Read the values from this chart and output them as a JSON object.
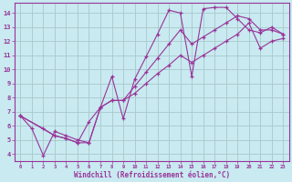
{
  "background_color": "#c8eaf0",
  "grid_color": "#a8c8cc",
  "line_color": "#993399",
  "marker": "+",
  "xlim": [
    -0.5,
    23.5
  ],
  "ylim": [
    3.5,
    14.7
  ],
  "xticks": [
    0,
    1,
    2,
    3,
    4,
    5,
    6,
    7,
    8,
    9,
    10,
    11,
    12,
    13,
    14,
    15,
    16,
    17,
    18,
    19,
    20,
    21,
    22,
    23
  ],
  "yticks": [
    4,
    5,
    6,
    7,
    8,
    9,
    10,
    11,
    12,
    13,
    14
  ],
  "xlabel": "Windchill (Refroidissement éolien,°C)",
  "curves": [
    {
      "x": [
        0,
        1,
        2,
        3,
        4,
        5,
        6,
        7,
        8,
        9,
        10,
        11,
        12,
        13,
        14,
        15,
        16,
        17,
        18,
        19,
        20,
        21,
        22,
        23
      ],
      "y": [
        6.7,
        5.8,
        3.9,
        5.6,
        5.3,
        5.0,
        4.8,
        7.3,
        9.5,
        6.5,
        9.3,
        10.9,
        12.5,
        14.2,
        14.0,
        9.5,
        14.3,
        14.4,
        14.4,
        13.6,
        12.8,
        12.6,
        13.0,
        12.5
      ]
    },
    {
      "x": [
        0,
        2,
        3,
        4,
        5,
        6,
        7,
        8,
        9,
        10,
        11,
        12,
        13,
        14,
        15,
        16,
        17,
        18,
        19,
        20,
        21,
        22,
        23
      ],
      "y": [
        6.7,
        5.8,
        5.3,
        5.1,
        4.8,
        6.3,
        7.3,
        7.8,
        7.8,
        8.8,
        9.8,
        10.8,
        11.8,
        12.8,
        11.8,
        12.3,
        12.8,
        13.3,
        13.8,
        13.6,
        12.8,
        12.8,
        12.5
      ]
    },
    {
      "x": [
        0,
        3,
        4,
        5,
        6,
        7,
        8,
        9,
        10,
        11,
        12,
        13,
        14,
        15,
        16,
        17,
        18,
        19,
        20,
        21,
        22,
        23
      ],
      "y": [
        6.7,
        5.3,
        5.1,
        4.8,
        4.8,
        7.3,
        7.8,
        7.8,
        8.3,
        9.0,
        9.7,
        10.3,
        11.0,
        10.5,
        11.0,
        11.5,
        12.0,
        12.5,
        13.3,
        11.5,
        12.0,
        12.2
      ]
    }
  ]
}
